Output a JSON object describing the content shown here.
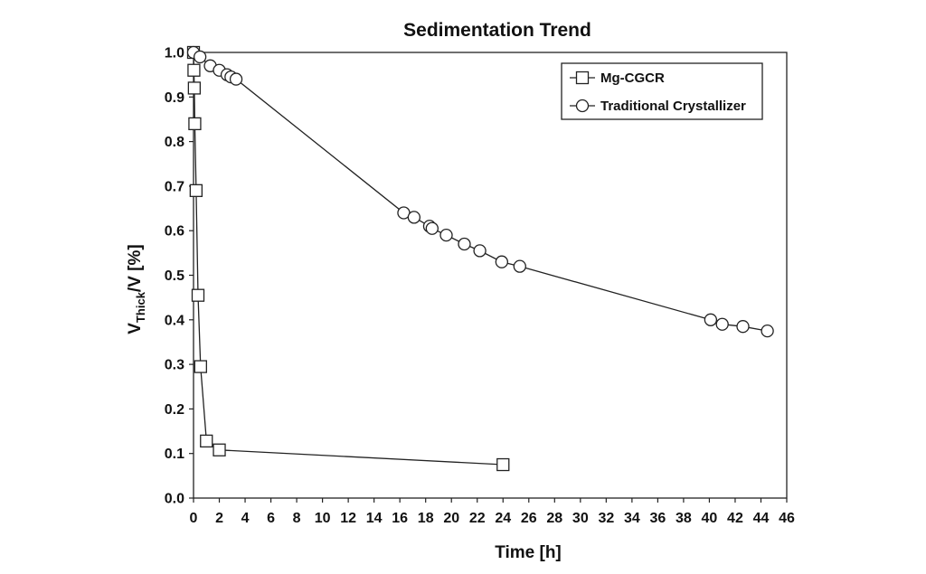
{
  "chart_data": {
    "type": "scatter",
    "title": "Sedimentation Trend",
    "xlabel": "Time [h]",
    "ylabel": {
      "main": "V",
      "subscript": "Thick",
      "rest": "/V [%]"
    },
    "xlim": [
      0,
      46
    ],
    "ylim": [
      0.0,
      1.0
    ],
    "x_ticks": [
      "0",
      "2",
      "4",
      "6",
      "8",
      "10",
      "12",
      "14",
      "16",
      "18",
      "20",
      "22",
      "24",
      "26",
      "28",
      "30",
      "32",
      "34",
      "36",
      "38",
      "40",
      "42",
      "44",
      "46"
    ],
    "y_ticks": [
      "0.0",
      "0.1",
      "0.2",
      "0.3",
      "0.4",
      "0.5",
      "0.6",
      "0.7",
      "0.8",
      "0.9",
      "1.0"
    ],
    "grid": false,
    "legend_position": "top-right",
    "series": [
      {
        "name": "Mg-CGCR",
        "marker": "square",
        "x": [
          0.0,
          0.03,
          0.06,
          0.1,
          0.2,
          0.35,
          0.55,
          1.0,
          2.0,
          24.0
        ],
        "y": [
          1.0,
          0.96,
          0.92,
          0.84,
          0.69,
          0.455,
          0.295,
          0.128,
          0.108,
          0.075
        ]
      },
      {
        "name": "Traditional Crystallizer",
        "marker": "circle",
        "x": [
          0.0,
          0.5,
          1.3,
          2.0,
          2.6,
          2.9,
          3.3,
          16.3,
          17.1,
          18.3,
          18.5,
          19.6,
          21.0,
          22.2,
          23.9,
          25.3,
          40.1,
          41.0,
          42.6,
          44.5
        ],
        "y": [
          1.0,
          0.99,
          0.97,
          0.96,
          0.95,
          0.945,
          0.94,
          0.64,
          0.63,
          0.61,
          0.605,
          0.59,
          0.57,
          0.555,
          0.53,
          0.52,
          0.4,
          0.39,
          0.385,
          0.375
        ]
      }
    ]
  }
}
